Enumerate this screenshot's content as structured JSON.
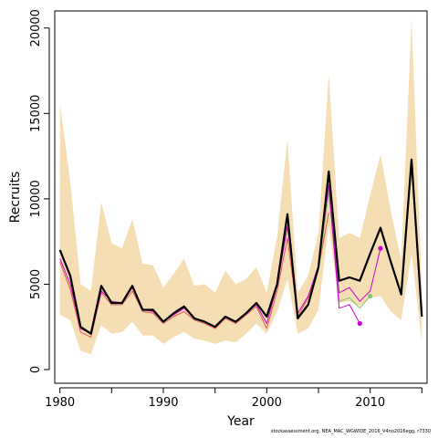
{
  "chart_data": {
    "type": "line",
    "xlabel": "Year",
    "ylabel": "Recruits",
    "xlim": [
      1979.5,
      2015.5
    ],
    "ylim": [
      -800,
      21000
    ],
    "x_ticks": [
      1980,
      1990,
      2000,
      2010
    ],
    "y_ticks": [
      0,
      5000,
      10000,
      15000,
      20000
    ],
    "grid": false,
    "legend": "none",
    "band": {
      "color": "#f5deb3",
      "x": [
        1980,
        1981,
        1982,
        1983,
        1984,
        1985,
        1986,
        1987,
        1988,
        1989,
        1990,
        1991,
        1992,
        1993,
        1994,
        1995,
        1996,
        1997,
        1998,
        1999,
        2000,
        2001,
        2002,
        2003,
        2004,
        2005,
        2006,
        2007,
        2008,
        2009,
        2010,
        2011,
        2012,
        2013,
        2014,
        2015
      ],
      "upper": [
        15600,
        11000,
        5000,
        4600,
        9800,
        7400,
        7100,
        8800,
        6200,
        6100,
        4800,
        5600,
        6500,
        4900,
        5000,
        4500,
        5800,
        5000,
        5300,
        6000,
        4500,
        7800,
        13500,
        4500,
        5500,
        8000,
        17300,
        7700,
        8000,
        7700,
        10200,
        12600,
        9300,
        6400,
        20500,
        4800
      ],
      "lower": [
        3200,
        2900,
        1100,
        900,
        2600,
        2100,
        2200,
        2800,
        2000,
        2000,
        1500,
        1900,
        2200,
        1800,
        1700,
        1500,
        1700,
        1600,
        2100,
        2700,
        2100,
        3400,
        5300,
        2100,
        2400,
        3500,
        8400,
        3900,
        4000,
        3700,
        4200,
        4300,
        3400,
        2900,
        6800,
        1600
      ]
    },
    "series": [
      {
        "color": "#000000",
        "x": [
          1980,
          1981,
          1982,
          1983,
          1984,
          1985,
          1986,
          1987,
          1988,
          1989,
          1990,
          1991,
          1992,
          1993,
          1994,
          1995,
          1996,
          1997,
          1998,
          1999,
          2000,
          2001,
          2002,
          2003,
          2004,
          2005,
          2006,
          2007,
          2008,
          2009,
          2010,
          2011,
          2012,
          2013,
          2014,
          2015
        ],
        "values": [
          7000,
          5500,
          2500,
          2100,
          4900,
          3900,
          3900,
          4900,
          3500,
          3500,
          2800,
          3300,
          3700,
          3000,
          2800,
          2500,
          3100,
          2800,
          3300,
          3900,
          3100,
          5000,
          9100,
          3000,
          3800,
          6000,
          11600,
          5200,
          5400,
          5200,
          6800,
          8300,
          6300,
          4400,
          12300,
          3100
        ]
      },
      {
        "color": "#e05a5a",
        "x": [
          1980,
          1981,
          1982,
          1983,
          1984,
          1985,
          1986,
          1987,
          1988,
          1989,
          1990,
          1991,
          1992,
          1993,
          1994,
          1995,
          1996,
          1997,
          1998,
          1999,
          2000,
          2001,
          2002,
          2003,
          2004,
          2005,
          2006
        ],
        "values": [
          6300,
          4700,
          2200,
          1900,
          4500,
          3800,
          3800,
          4600,
          3400,
          3300,
          2700,
          3100,
          3400,
          2900,
          2700,
          2400,
          3000,
          2700,
          3200,
          3700,
          2400,
          4600,
          7700,
          3100,
          4200,
          5900,
          9200
        ]
      },
      {
        "color": "#7cc46a",
        "x": [
          2005,
          2006,
          2007,
          2008,
          2009,
          2010
        ],
        "values": [
          5800,
          10400,
          4000,
          4200,
          3600,
          4300
        ],
        "marker_last": true
      },
      {
        "color": "#cc00cc",
        "x": [
          1980,
          1981,
          1982,
          1983,
          1984,
          1985,
          1986,
          1987,
          1988,
          1989,
          1990,
          1991,
          1992,
          1993,
          1994,
          1995,
          1996,
          1997,
          1998,
          1999,
          2000,
          2001,
          2002,
          2003,
          2004,
          2005,
          2006,
          2007,
          2008,
          2009
        ],
        "values": [
          6500,
          5000,
          2400,
          2100,
          4600,
          4000,
          3900,
          4800,
          3500,
          3400,
          2800,
          3200,
          3600,
          3000,
          2800,
          2500,
          3100,
          2800,
          3300,
          3800,
          2700,
          4900,
          8400,
          3300,
          4300,
          6100,
          10800,
          3600,
          3800,
          2700
        ],
        "marker_last": true
      },
      {
        "color": "#cc00cc",
        "x": [
          2006,
          2007,
          2008,
          2009,
          2010,
          2011
        ],
        "values": [
          10800,
          4500,
          4800,
          4000,
          4600,
          7100
        ],
        "marker_last": true
      }
    ]
  },
  "footer": "stockassessment.org, NEA_MAC_WGWIDE_2016_V4no2016egg, r7330"
}
